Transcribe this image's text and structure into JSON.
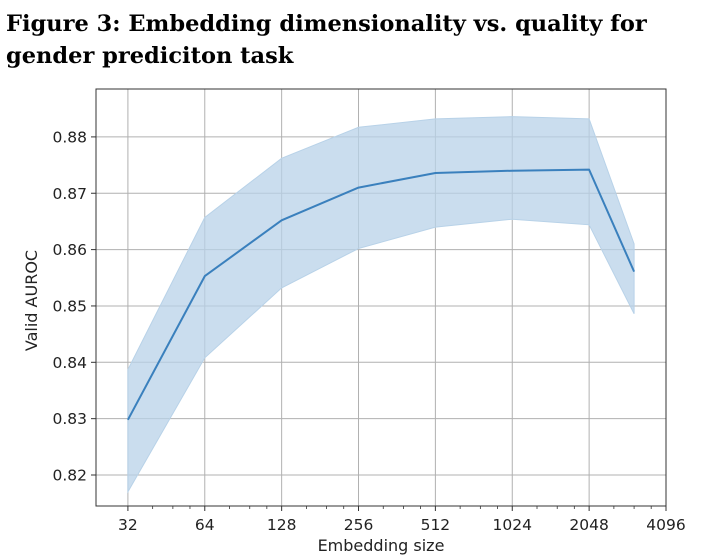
{
  "figure": {
    "title": "Figure 3: Embedding dimensionality vs. quality for gender prediciton task"
  },
  "chart_data": {
    "type": "line",
    "title": "",
    "xlabel": "Embedding size",
    "ylabel": "Valid AUROC",
    "x_scale": "log2",
    "x_ticks": [
      32,
      64,
      128,
      256,
      512,
      1024,
      2048,
      4096
    ],
    "x_tick_labels": [
      "32",
      "64",
      "128",
      "256",
      "512",
      "1024",
      "2048",
      "4096"
    ],
    "y_ticks": [
      0.82,
      0.83,
      0.84,
      0.85,
      0.86,
      0.87,
      0.88
    ],
    "y_tick_labels": [
      "0.82",
      "0.83",
      "0.84",
      "0.85",
      "0.86",
      "0.87",
      "0.88"
    ],
    "xlim": [
      24,
      4096
    ],
    "ylim": [
      0.8145,
      0.8885
    ],
    "grid": true,
    "legend": false,
    "x": [
      32,
      64,
      128,
      256,
      512,
      1024,
      2048,
      3072
    ],
    "series": [
      {
        "values": [
          0.8298,
          0.8553,
          0.8652,
          0.871,
          0.8736,
          0.874,
          0.8742,
          0.8561
        ],
        "lower": [
          0.817,
          0.8408,
          0.8532,
          0.8602,
          0.864,
          0.8654,
          0.8644,
          0.8486
        ],
        "upper": [
          0.8387,
          0.8657,
          0.8762,
          0.8817,
          0.8832,
          0.8836,
          0.8832,
          0.861
        ],
        "color": "#3a80bd",
        "band_color": "#b8d2e8"
      }
    ]
  }
}
